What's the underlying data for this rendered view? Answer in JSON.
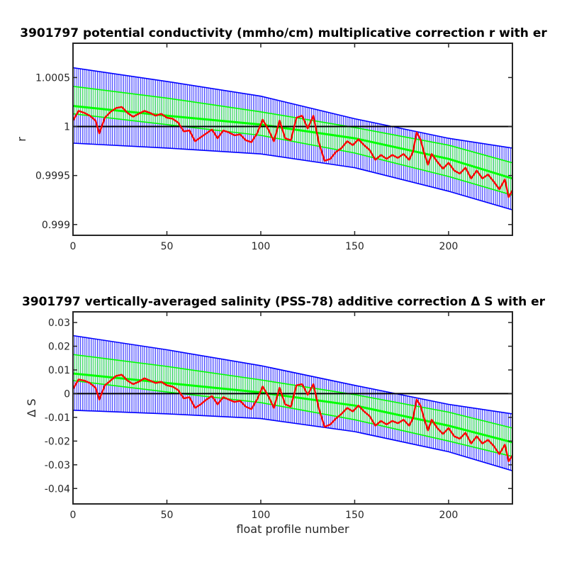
{
  "chart_data": [
    {
      "type": "line",
      "title": "3901797 potential conductivity (mmho/cm) multiplicative correction r with er",
      "xlabel": "",
      "ylabel": "r",
      "xlim": [
        0,
        234
      ],
      "ylim": [
        0.99889,
        1.00085
      ],
      "xticks": [
        0,
        50,
        100,
        150,
        200
      ],
      "xtick_labels": [
        "0",
        "50",
        "100",
        "150",
        "200"
      ],
      "yticks": [
        0.999,
        0.9995,
        1,
        1.0005
      ],
      "ytick_labels": [
        "0.999",
        "0.9995",
        "1",
        "1.0005"
      ],
      "grid": false,
      "reference_line": 1,
      "series": [
        {
          "role": "blue error band",
          "color": "#0000ff",
          "x": [
            0,
            50,
            100,
            150,
            200,
            234
          ],
          "upper": [
            1.0006,
            1.00046,
            1.00031,
            1.00008,
            0.99988,
            0.99978
          ],
          "lower": [
            0.99983,
            0.99978,
            0.99972,
            0.99958,
            0.99934,
            0.99915
          ]
        },
        {
          "role": "green error band",
          "color": "#00ff00",
          "x": [
            0,
            50,
            100,
            150,
            200,
            234
          ],
          "center": [
            1.00021,
            1.00011,
            1.00002,
            0.99988,
            0.99967,
            0.99947
          ],
          "upper": [
            1.00041,
            1.00029,
            1.00015,
            0.99999,
            0.99981,
            0.99963
          ],
          "lower": [
            1.00013,
            1.00002,
            0.99991,
            0.99973,
            0.99949,
            0.9993
          ]
        },
        {
          "role": "red correction curve",
          "color": "#ff0000",
          "x": [
            0,
            3,
            6,
            9,
            12,
            14,
            17,
            20,
            23,
            26,
            29,
            32,
            35,
            38,
            41,
            44,
            47,
            50,
            53,
            56,
            59,
            62,
            65,
            68,
            71,
            74,
            77,
            80,
            83,
            86,
            89,
            92,
            95,
            98,
            101,
            104,
            107,
            110,
            113,
            116,
            119,
            122,
            125,
            128,
            131,
            134,
            137,
            140,
            143,
            146,
            149,
            152,
            155,
            158,
            161,
            164,
            167,
            170,
            173,
            176,
            179,
            181,
            183,
            185,
            187,
            189,
            191,
            194,
            197,
            200,
            203,
            206,
            209,
            212,
            215,
            218,
            221,
            224,
            227,
            230,
            232,
            234
          ],
          "y": [
            1.00006,
            1.00016,
            1.00014,
            1.00011,
            1.00006,
            0.99993,
            1.00009,
            1.00015,
            1.00019,
            1.0002,
            1.00014,
            1.0001,
            1.00013,
            1.00016,
            1.00014,
            1.00011,
            1.00013,
            1.00009,
            1.00008,
            1.00004,
            0.99995,
            0.99996,
            0.99985,
            0.99989,
            0.99993,
            0.99997,
            0.99988,
            0.99996,
            0.99994,
            0.99991,
            0.99992,
            0.99986,
            0.99984,
            0.99993,
            1.00007,
            0.99997,
            0.99985,
            1.00006,
            0.99988,
            0.99986,
            1.00009,
            1.00011,
            0.99998,
            1.00011,
            0.99983,
            0.99965,
            0.99967,
            0.99974,
            0.99978,
            0.99985,
            0.99981,
            0.99987,
            0.99981,
            0.99976,
            0.99966,
            0.99971,
            0.99967,
            0.99971,
            0.99968,
            0.99972,
            0.99966,
            0.99974,
            0.99994,
            0.99987,
            0.99973,
            0.99961,
            0.99972,
            0.99964,
            0.99957,
            0.99963,
            0.99955,
            0.99952,
            0.99958,
            0.99947,
            0.99955,
            0.99947,
            0.99951,
            0.99944,
            0.99936,
            0.99946,
            0.99928,
            0.99935
          ]
        }
      ]
    },
    {
      "type": "line",
      "title": "3901797 vertically-averaged salinity (PSS-78) additive correction Δ S with er",
      "xlabel": "float profile number",
      "ylabel": "Δ S",
      "xlim": [
        0,
        234
      ],
      "ylim": [
        -0.0465,
        0.0345
      ],
      "xticks": [
        0,
        50,
        100,
        150,
        200
      ],
      "xtick_labels": [
        "0",
        "50",
        "100",
        "150",
        "200"
      ],
      "yticks": [
        -0.04,
        -0.03,
        -0.02,
        -0.01,
        0,
        0.01,
        0.02,
        0.03
      ],
      "ytick_labels": [
        "-0.04",
        "-0.03",
        "-0.02",
        "-0.01",
        "0",
        "0.01",
        "0.02",
        "0.03"
      ],
      "grid": false,
      "reference_line": 0,
      "series": [
        {
          "role": "blue error band",
          "color": "#0000ff",
          "x": [
            0,
            50,
            100,
            150,
            200,
            234
          ],
          "upper": [
            0.0245,
            0.0185,
            0.0118,
            0.0035,
            -0.0045,
            -0.0085
          ],
          "lower": [
            -0.007,
            -0.0085,
            -0.0105,
            -0.016,
            -0.0245,
            -0.0325
          ]
        },
        {
          "role": "green error band",
          "color": "#00ff00",
          "x": [
            0,
            50,
            100,
            150,
            200,
            234
          ],
          "center": [
            0.0085,
            0.0045,
            0.0005,
            -0.005,
            -0.0135,
            -0.0205
          ],
          "upper": [
            0.0165,
            0.0115,
            0.0058,
            -0.0004,
            -0.0078,
            -0.0145
          ],
          "lower": [
            0.0055,
            0.0007,
            -0.0038,
            -0.011,
            -0.02,
            -0.0265
          ]
        },
        {
          "role": "red correction curve",
          "color": "#ff0000",
          "x": [
            0,
            3,
            6,
            9,
            12,
            14,
            17,
            20,
            23,
            26,
            29,
            32,
            35,
            38,
            41,
            44,
            47,
            50,
            53,
            56,
            59,
            62,
            65,
            68,
            71,
            74,
            77,
            80,
            83,
            86,
            89,
            92,
            95,
            98,
            101,
            104,
            107,
            110,
            113,
            116,
            119,
            122,
            125,
            128,
            131,
            134,
            137,
            140,
            143,
            146,
            149,
            152,
            155,
            158,
            161,
            164,
            167,
            170,
            173,
            176,
            179,
            181,
            183,
            185,
            187,
            189,
            191,
            194,
            197,
            200,
            203,
            206,
            209,
            212,
            215,
            218,
            221,
            224,
            227,
            230,
            232,
            234
          ],
          "y": [
            0.002,
            0.006,
            0.0055,
            0.0045,
            0.0025,
            -0.0025,
            0.0035,
            0.0055,
            0.0075,
            0.008,
            0.0055,
            0.004,
            0.005,
            0.0065,
            0.0055,
            0.0045,
            0.005,
            0.0035,
            0.003,
            0.0015,
            -0.002,
            -0.0015,
            -0.006,
            -0.0045,
            -0.0025,
            -0.001,
            -0.0045,
            -0.0015,
            -0.0025,
            -0.0035,
            -0.003,
            -0.0055,
            -0.0065,
            -0.0025,
            0.003,
            -0.001,
            -0.006,
            0.0025,
            -0.0045,
            -0.0055,
            0.0035,
            0.004,
            -0.0005,
            0.004,
            -0.0065,
            -0.014,
            -0.013,
            -0.0105,
            -0.0085,
            -0.006,
            -0.0075,
            -0.005,
            -0.0075,
            -0.0095,
            -0.0135,
            -0.0115,
            -0.013,
            -0.0115,
            -0.0125,
            -0.011,
            -0.0135,
            -0.0105,
            -0.0025,
            -0.005,
            -0.0105,
            -0.0155,
            -0.011,
            -0.0145,
            -0.017,
            -0.0145,
            -0.018,
            -0.019,
            -0.0165,
            -0.021,
            -0.018,
            -0.021,
            -0.0195,
            -0.022,
            -0.0255,
            -0.0215,
            -0.0285,
            -0.026
          ]
        }
      ]
    }
  ]
}
